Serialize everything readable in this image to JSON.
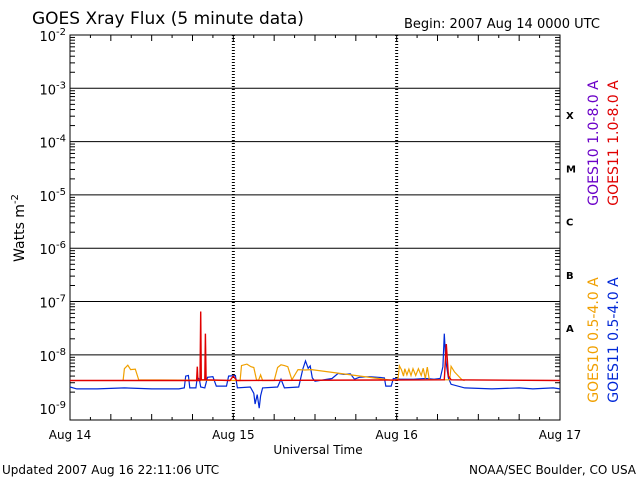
{
  "title": "GOES Xray Flux (5 minute data)",
  "begin_label": "Begin:  2007 Aug 14 0000 UTC",
  "updated_label": "Updated 2007 Aug 16 22:11:06 UTC",
  "source_label": "NOAA/SEC Boulder, CO USA",
  "chart_data": {
    "type": "line",
    "title": "GOES Xray Flux (5 minute data)",
    "xlabel": "Universal Time",
    "ylabel": "Watts m",
    "ylabel_sup": "-2",
    "x_unit": "hours since 2007 Aug 14 0000 UTC",
    "xlim": [
      0,
      72
    ],
    "ylim": [
      6e-10,
      0.01
    ],
    "yscale": "log",
    "x_ticks": [
      {
        "x": 0,
        "label": "Aug 14"
      },
      {
        "x": 24,
        "label": "Aug 15"
      },
      {
        "x": 48,
        "label": "Aug 16"
      },
      {
        "x": 72,
        "label": "Aug 17"
      }
    ],
    "y_ticks": [
      {
        "exp": -9,
        "label": "10",
        "sup": "-9"
      },
      {
        "exp": -8,
        "label": "10",
        "sup": "-8"
      },
      {
        "exp": -7,
        "label": "10",
        "sup": "-7"
      },
      {
        "exp": -6,
        "label": "10",
        "sup": "-6"
      },
      {
        "exp": -5,
        "label": "10",
        "sup": "-5"
      },
      {
        "exp": -4,
        "label": "10",
        "sup": "-4"
      },
      {
        "exp": -3,
        "label": "10",
        "sup": "-3"
      },
      {
        "exp": -2,
        "label": "10",
        "sup": "-2"
      }
    ],
    "flare_classes": [
      {
        "label": "A",
        "exp": -8
      },
      {
        "label": "B",
        "exp": -7
      },
      {
        "label": "C",
        "exp": -6
      },
      {
        "label": "M",
        "exp": -5
      },
      {
        "label": "X",
        "exp": -4
      }
    ],
    "legend": [
      {
        "name": "GOES10 1.0-8.0 A",
        "color": "#6a00c8"
      },
      {
        "name": "GOES11 1.0-8.0 A",
        "color": "#e00000"
      },
      {
        "name": "GOES10 0.5-4.0 A",
        "color": "#f0a000"
      },
      {
        "name": "GOES11 0.5-4.0 A",
        "color": "#0028d8"
      }
    ],
    "series": [
      {
        "name": "GOES10 1.0-8.0 A",
        "color": "#6a00c8",
        "points": []
      },
      {
        "name": "GOES11 1.0-8.0 A",
        "color": "#e00000",
        "points": [
          [
            0,
            3.3e-09
          ],
          [
            18.6,
            3.3e-09
          ],
          [
            18.7,
            6e-09
          ],
          [
            18.8,
            3.3e-09
          ],
          [
            19.1,
            3.3e-09
          ],
          [
            19.2,
            6.5e-08
          ],
          [
            19.3,
            3.4e-09
          ],
          [
            19.8,
            3.4e-09
          ],
          [
            19.9,
            2.5e-08
          ],
          [
            20.0,
            3.4e-09
          ],
          [
            23.5,
            3.3e-09
          ],
          [
            24,
            4e-09
          ],
          [
            24.5,
            3.3e-09
          ],
          [
            55,
            3.4e-09
          ],
          [
            55.3,
            1.6e-08
          ],
          [
            55.6,
            4e-09
          ],
          [
            56,
            3.4e-09
          ],
          [
            72,
            3.3e-09
          ]
        ]
      },
      {
        "name": "GOES10 0.5-4.0 A",
        "color": "#f0a000",
        "points": [
          [
            7.8,
            3.3e-09
          ],
          [
            8.0,
            5.5e-09
          ],
          [
            8.5,
            6.4e-09
          ],
          [
            8.9,
            5.3e-09
          ],
          [
            9.6,
            5.4e-09
          ],
          [
            10.1,
            3.4e-09
          ],
          [
            25,
            3.3e-09
          ],
          [
            25.2,
            6.3e-09
          ],
          [
            26,
            6.7e-09
          ],
          [
            26.6,
            6e-09
          ],
          [
            27,
            5.8e-09
          ],
          [
            27.4,
            3.4e-09
          ],
          [
            27.7,
            3.3e-09
          ],
          [
            28.0,
            4.2e-09
          ],
          [
            28.3,
            3.3e-09
          ],
          [
            30,
            3.3e-09
          ],
          [
            30.5,
            5.8e-09
          ],
          [
            31,
            6.5e-09
          ],
          [
            31.5,
            6.3e-09
          ],
          [
            32,
            6e-09
          ],
          [
            32.6,
            3.4e-09
          ],
          [
            33.5,
            5.3e-09
          ],
          [
            34.5,
            5.2e-09
          ],
          [
            35.5,
            5.3e-09
          ],
          [
            47.5,
            3.3e-09
          ],
          [
            48.2,
            3.5e-09
          ],
          [
            48.4,
            6.2e-09
          ],
          [
            48.7,
            5.3e-09
          ],
          [
            49.0,
            4e-09
          ],
          [
            49.2,
            5.5e-09
          ],
          [
            49.5,
            4.2e-09
          ],
          [
            49.8,
            5.4e-09
          ],
          [
            50.1,
            4.1e-09
          ],
          [
            50.4,
            5.5e-09
          ],
          [
            50.8,
            4.1e-09
          ],
          [
            51.2,
            5.5e-09
          ],
          [
            51.6,
            4.1e-09
          ],
          [
            51.9,
            5.6e-09
          ],
          [
            52.2,
            3.6e-09
          ],
          [
            52.5,
            5.9e-09
          ],
          [
            52.8,
            3.4e-09
          ],
          [
            55.8,
            3.4e-09
          ],
          [
            56.0,
            6.1e-09
          ],
          [
            56.5,
            4.8e-09
          ],
          [
            57.0,
            4.1e-09
          ],
          [
            57.6,
            3.4e-09
          ],
          [
            58.0,
            3.3e-09
          ]
        ]
      },
      {
        "name": "GOES11 0.5-4.0 A",
        "color": "#0028d8",
        "points": [
          [
            0,
            2.5e-09
          ],
          [
            1,
            2.3e-09
          ],
          [
            4,
            2.3e-09
          ],
          [
            8,
            2.4e-09
          ],
          [
            12,
            2.3e-09
          ],
          [
            16,
            2.3e-09
          ],
          [
            16.8,
            2.4e-09
          ],
          [
            17.0,
            4e-09
          ],
          [
            17.4,
            4.1e-09
          ],
          [
            17.6,
            2.4e-09
          ],
          [
            18.5,
            2.4e-09
          ],
          [
            18.7,
            3.8e-09
          ],
          [
            19.0,
            3.5e-09
          ],
          [
            19.2,
            2.5e-09
          ],
          [
            19.8,
            2.4e-09
          ],
          [
            20.2,
            3.8e-09
          ],
          [
            21.0,
            3.9e-09
          ],
          [
            21.5,
            2.6e-09
          ],
          [
            23.0,
            2.6e-09
          ],
          [
            23.3,
            4e-09
          ],
          [
            24.3,
            4.1e-09
          ],
          [
            24.6,
            2.4e-09
          ],
          [
            26.5,
            2.5e-09
          ],
          [
            27.0,
            1.9e-09
          ],
          [
            27.2,
            1.2e-09
          ],
          [
            27.5,
            1.8e-09
          ],
          [
            27.8,
            1e-09
          ],
          [
            28.0,
            1.7e-09
          ],
          [
            28.3,
            2.4e-09
          ],
          [
            30.5,
            2.5e-09
          ],
          [
            31,
            3.5e-09
          ],
          [
            31.5,
            2.4e-09
          ],
          [
            33.6,
            2.5e-09
          ],
          [
            34.2,
            5.4e-09
          ],
          [
            34.6,
            7.7e-09
          ],
          [
            35.0,
            5.6e-09
          ],
          [
            35.3,
            6.2e-09
          ],
          [
            35.6,
            3.7e-09
          ],
          [
            36.0,
            3.2e-09
          ],
          [
            38.5,
            3.6e-09
          ],
          [
            39.4,
            4.5e-09
          ],
          [
            40.2,
            4.3e-09
          ],
          [
            41.2,
            4.4e-09
          ],
          [
            41.8,
            3.5e-09
          ],
          [
            42.5,
            3.8e-09
          ],
          [
            44.0,
            3.9e-09
          ],
          [
            45.3,
            3.8e-09
          ],
          [
            46.2,
            3.7e-09
          ],
          [
            46.4,
            2.6e-09
          ],
          [
            47.2,
            2.6e-09
          ],
          [
            47.5,
            3.6e-09
          ],
          [
            48.5,
            3.5e-09
          ],
          [
            50.5,
            3.5e-09
          ],
          [
            52.3,
            3.6e-09
          ],
          [
            53.5,
            3.5e-09
          ],
          [
            54.4,
            3.6e-09
          ],
          [
            54.8,
            6e-09
          ],
          [
            55.0,
            2.5e-08
          ],
          [
            55.2,
            8e-09
          ],
          [
            55.6,
            3.7e-09
          ],
          [
            56.0,
            2.8e-09
          ],
          [
            58,
            2.4e-09
          ],
          [
            62,
            2.3e-09
          ],
          [
            66,
            2.4e-09
          ],
          [
            68,
            2.3e-09
          ],
          [
            71,
            2.4e-09
          ],
          [
            72,
            2.3e-09
          ]
        ]
      }
    ]
  }
}
